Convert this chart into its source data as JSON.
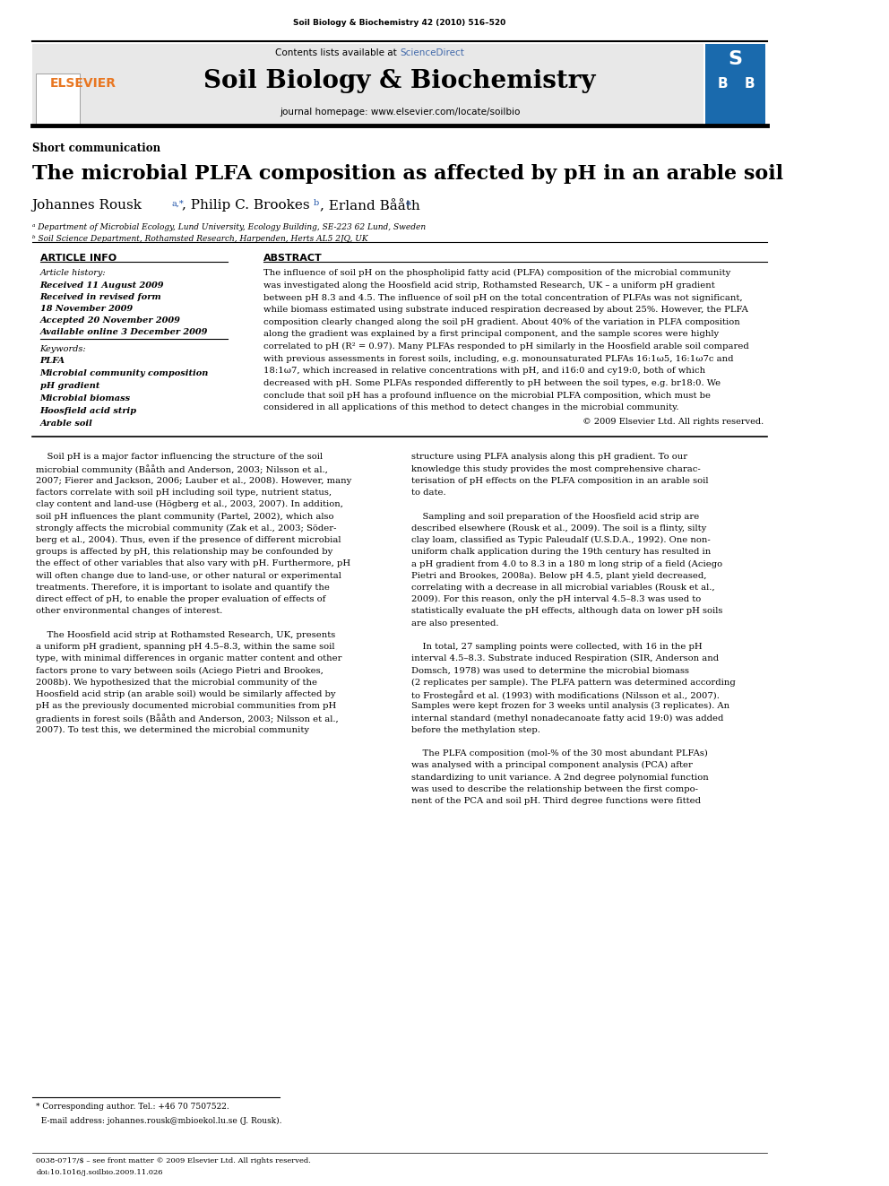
{
  "journal_header_text": "Soil Biology & Biochemistry 42 (2010) 516–520",
  "contents_text": "Contents lists available at ScienceDirect",
  "sciencedirect_color": "#4169aa",
  "journal_title": "Soil Biology & Biochemistry",
  "journal_homepage": "journal homepage: www.elsevier.com/locate/soilbio",
  "section_label": "Short communication",
  "article_title": "The microbial PLFA composition as affected by pH in an arable soil",
  "affil_a": "ᵃ Department of Microbial Ecology, Lund University, Ecology Building, SE-223 62 Lund, Sweden",
  "affil_b": "ᵇ Soil Science Department, Rothamsted Research, Harpenden, Herts AL5 2JQ, UK",
  "article_info_header": "ARTICLE INFO",
  "abstract_header": "ABSTRACT",
  "article_history_label": "Article history:",
  "received_1": "Received 11 August 2009",
  "received_2": "Received in revised form",
  "received_2b": "18 November 2009",
  "accepted": "Accepted 20 November 2009",
  "available": "Available online 3 December 2009",
  "keywords_label": "Keywords:",
  "keywords": [
    "PLFA",
    "Microbial community composition",
    "pH gradient",
    "Microbial biomass",
    "Hoosfield acid strip",
    "Arable soil"
  ],
  "copyright_text": "© 2009 Elsevier Ltd. All rights reserved.",
  "header_bg_color": "#e8e8e8",
  "elsevier_color": "#e87722",
  "link_color": "#2255aa",
  "figure_size": [
    9.92,
    13.23
  ],
  "dpi": 100,
  "abstract_lines": [
    "The influence of soil pH on the phospholipid fatty acid (PLFA) composition of the microbial community",
    "was investigated along the Hoosfield acid strip, Rothamsted Research, UK – a uniform pH gradient",
    "between pH 8.3 and 4.5. The influence of soil pH on the total concentration of PLFAs was not significant,",
    "while biomass estimated using substrate induced respiration decreased by about 25%. However, the PLFA",
    "composition clearly changed along the soil pH gradient. About 40% of the variation in PLFA composition",
    "along the gradient was explained by a first principal component, and the sample scores were highly",
    "correlated to pH (R² = 0.97). Many PLFAs responded to pH similarly in the Hoosfield arable soil compared",
    "with previous assessments in forest soils, including, e.g. monounsaturated PLFAs 16:1ω5, 16:1ω7c and",
    "18:1ω7, which increased in relative concentrations with pH, and i16:0 and cy19:0, both of which",
    "decreased with pH. Some PLFAs responded differently to pH between the soil types, e.g. br18:0. We",
    "conclude that soil pH has a profound influence on the microbial PLFA composition, which must be",
    "considered in all applications of this method to detect changes in the microbial community."
  ],
  "col1_lines": [
    "    Soil pH is a major factor influencing the structure of the soil",
    "microbial community (Bååth and Anderson, 2003; Nilsson et al.,",
    "2007; Fierer and Jackson, 2006; Lauber et al., 2008). However, many",
    "factors correlate with soil pH including soil type, nutrient status,",
    "clay content and land-use (Högberg et al., 2003, 2007). In addition,",
    "soil pH influences the plant community (Partel, 2002), which also",
    "strongly affects the microbial community (Zak et al., 2003; Söder-",
    "berg et al., 2004). Thus, even if the presence of different microbial",
    "groups is affected by pH, this relationship may be confounded by",
    "the effect of other variables that also vary with pH. Furthermore, pH",
    "will often change due to land-use, or other natural or experimental",
    "treatments. Therefore, it is important to isolate and quantify the",
    "direct effect of pH, to enable the proper evaluation of effects of",
    "other environmental changes of interest.",
    "",
    "    The Hoosfield acid strip at Rothamsted Research, UK, presents",
    "a uniform pH gradient, spanning pH 4.5–8.3, within the same soil",
    "type, with minimal differences in organic matter content and other",
    "factors prone to vary between soils (Aciego Pietri and Brookes,",
    "2008b). We hypothesized that the microbial community of the",
    "Hoosfield acid strip (an arable soil) would be similarly affected by",
    "pH as the previously documented microbial communities from pH",
    "gradients in forest soils (Bååth and Anderson, 2003; Nilsson et al.,",
    "2007). To test this, we determined the microbial community"
  ],
  "col2_lines": [
    "structure using PLFA analysis along this pH gradient. To our",
    "knowledge this study provides the most comprehensive charac-",
    "terisation of pH effects on the PLFA composition in an arable soil",
    "to date.",
    "",
    "    Sampling and soil preparation of the Hoosfield acid strip are",
    "described elsewhere (Rousk et al., 2009). The soil is a flinty, silty",
    "clay loam, classified as Typic Paleudalf (U.S.D.A., 1992). One non-",
    "uniform chalk application during the 19th century has resulted in",
    "a pH gradient from 4.0 to 8.3 in a 180 m long strip of a field (Aciego",
    "Pietri and Brookes, 2008a). Below pH 4.5, plant yield decreased,",
    "correlating with a decrease in all microbial variables (Rousk et al.,",
    "2009). For this reason, only the pH interval 4.5–8.3 was used to",
    "statistically evaluate the pH effects, although data on lower pH soils",
    "are also presented.",
    "",
    "    In total, 27 sampling points were collected, with 16 in the pH",
    "interval 4.5–8.3. Substrate induced Respiration (SIR, Anderson and",
    "Domsch, 1978) was used to determine the microbial biomass",
    "(2 replicates per sample). The PLFA pattern was determined according",
    "to Frostegård et al. (1993) with modifications (Nilsson et al., 2007).",
    "Samples were kept frozen for 3 weeks until analysis (3 replicates). An",
    "internal standard (methyl nonadecanoate fatty acid 19:0) was added",
    "before the methylation step.",
    "",
    "    The PLFA composition (mol-% of the 30 most abundant PLFAs)",
    "was analysed with a principal component analysis (PCA) after",
    "standardizing to unit variance. A 2nd degree polynomial function",
    "was used to describe the relationship between the first compo-",
    "nent of the PCA and soil pH. Third degree functions were fitted"
  ],
  "footnote_lines": [
    "* Corresponding author. Tel.: +46 70 7507522.",
    "  E-mail address: johannes.rousk@mbioekol.lu.se (J. Rousk)."
  ],
  "footer_lines": [
    "0038-0717/$ – see front matter © 2009 Elsevier Ltd. All rights reserved.",
    "doi:10.1016/j.soilbio.2009.11.026"
  ]
}
